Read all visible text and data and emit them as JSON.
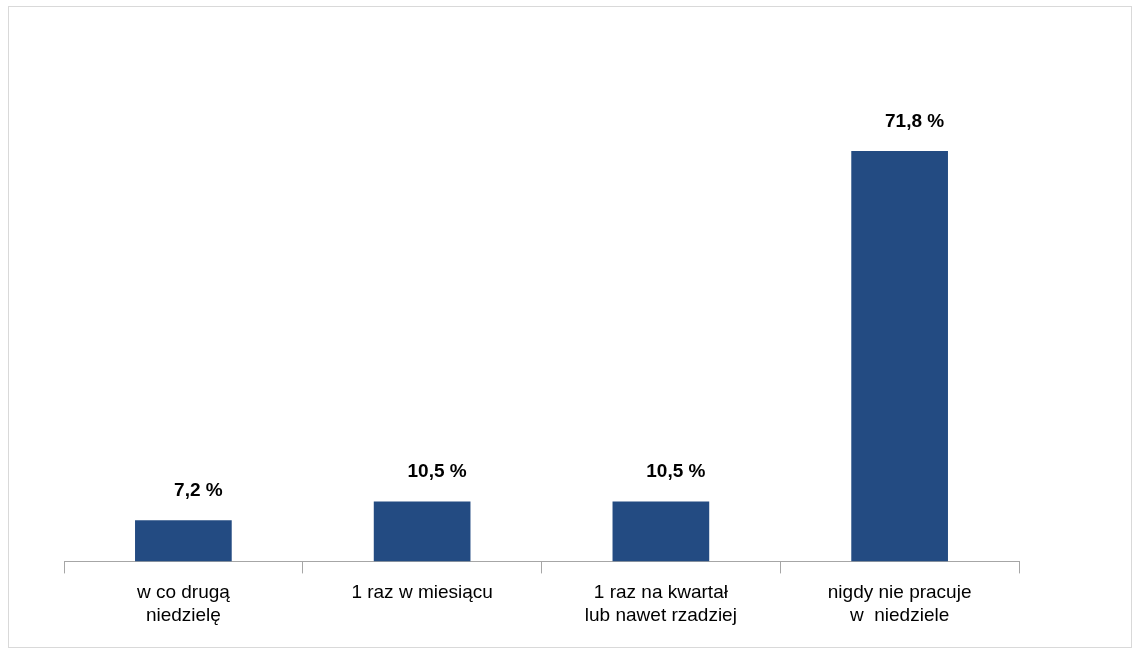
{
  "chart_data": {
    "type": "bar",
    "categories": [
      "w co drugą\nniedzielę",
      "1 raz w miesiącu",
      "1 raz na kwartał\nlub nawet rzadziej",
      "nigdy nie pracuje\nw  niedziele"
    ],
    "values": [
      7.2,
      10.5,
      10.5,
      71.8
    ],
    "value_labels": [
      "7,2 %",
      "10,5 %",
      "10,5 %",
      "71,8 %"
    ],
    "color": "#234b82",
    "grid": false,
    "legend": false
  }
}
